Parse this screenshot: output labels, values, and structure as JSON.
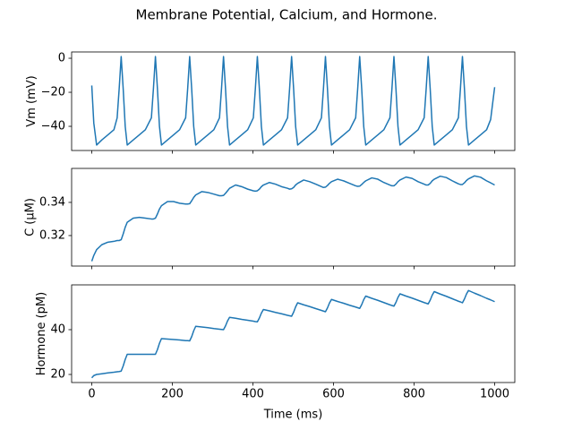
{
  "title": "Membrane Potential, Calcium, and Hormone.",
  "chart_data": [
    {
      "type": "line",
      "ylabel": "Vm (mV)",
      "color": "#1f77b4",
      "xlim": [
        -50,
        1050
      ],
      "ylim": [
        -54.2,
        3.7
      ],
      "yticks": [
        {
          "value": -40,
          "label": "−40"
        },
        {
          "value": -20,
          "label": "−20"
        },
        {
          "value": 0,
          "label": "0"
        }
      ],
      "x": [
        0,
        5,
        12,
        25,
        40,
        55,
        63,
        68,
        73,
        78,
        83,
        88,
        103,
        118,
        133,
        148,
        153,
        158,
        163,
        168,
        173,
        188,
        203,
        218,
        233,
        238,
        243,
        248,
        253,
        258,
        273,
        288,
        303,
        317,
        322,
        327,
        332,
        337,
        342,
        357,
        372,
        387,
        401,
        406,
        411,
        416,
        421,
        426,
        441,
        456,
        471,
        486,
        491,
        496,
        501,
        506,
        511,
        526,
        541,
        556,
        570,
        575,
        580,
        585,
        590,
        595,
        610,
        625,
        640,
        655,
        660,
        665,
        670,
        675,
        680,
        695,
        710,
        725,
        740,
        745,
        750,
        755,
        760,
        765,
        780,
        795,
        810,
        825,
        830,
        835,
        840,
        845,
        850,
        865,
        880,
        895,
        910,
        915,
        920,
        925,
        930,
        935,
        950,
        965,
        980,
        990,
        1000
      ],
      "values": [
        -16,
        -38,
        -51,
        -48,
        -45,
        -42,
        -35,
        -18,
        1,
        -18,
        -40,
        -51,
        -48,
        -45,
        -42,
        -35,
        -18,
        1,
        -18,
        -40,
        -51,
        -48,
        -45,
        -42,
        -35,
        -18,
        1,
        -18,
        -40,
        -51,
        -48,
        -45,
        -42,
        -35,
        -18,
        1,
        -18,
        -40,
        -51,
        -48,
        -45,
        -42,
        -35,
        -18,
        1,
        -18,
        -40,
        -51,
        -48,
        -45,
        -42,
        -35,
        -18,
        1,
        -18,
        -40,
        -51,
        -48,
        -45,
        -42,
        -35,
        -18,
        1,
        -18,
        -40,
        -51,
        -48,
        -45,
        -42,
        -35,
        -18,
        1,
        -18,
        -40,
        -51,
        -48,
        -45,
        -42,
        -35,
        -18,
        1,
        -18,
        -40,
        -51,
        -48,
        -45,
        -42,
        -35,
        -18,
        1,
        -18,
        -40,
        -51,
        -48,
        -45,
        -42,
        -35,
        -18,
        1,
        -18,
        -40,
        -51,
        -48,
        -45,
        -42,
        -36,
        -17
      ]
    },
    {
      "type": "line",
      "ylabel": "C (μM)",
      "color": "#1f77b4",
      "xlim": [
        -50,
        1050
      ],
      "ylim": [
        0.3016,
        0.3605
      ],
      "yticks": [
        0.32,
        0.34
      ],
      "x": [
        0,
        5,
        12,
        25,
        40,
        55,
        63,
        68,
        73,
        78,
        83,
        88,
        103,
        118,
        133,
        148,
        153,
        158,
        163,
        168,
        173,
        188,
        203,
        218,
        233,
        238,
        243,
        248,
        253,
        258,
        273,
        288,
        303,
        317,
        322,
        327,
        332,
        337,
        342,
        357,
        372,
        387,
        401,
        406,
        411,
        416,
        421,
        426,
        441,
        456,
        471,
        486,
        491,
        496,
        501,
        506,
        511,
        526,
        541,
        556,
        570,
        575,
        580,
        585,
        590,
        595,
        610,
        625,
        640,
        655,
        660,
        665,
        670,
        675,
        680,
        695,
        710,
        725,
        740,
        745,
        750,
        755,
        760,
        765,
        780,
        795,
        810,
        825,
        830,
        835,
        840,
        845,
        850,
        865,
        880,
        895,
        910,
        915,
        920,
        925,
        930,
        935,
        950,
        965,
        980,
        990,
        1000
      ],
      "values": [
        0.3045,
        0.308,
        0.3115,
        0.3145,
        0.316,
        0.3165,
        0.317,
        0.317,
        0.3175,
        0.321,
        0.325,
        0.328,
        0.3305,
        0.331,
        0.3305,
        0.33,
        0.33,
        0.3305,
        0.333,
        0.336,
        0.338,
        0.3405,
        0.3405,
        0.3395,
        0.339,
        0.339,
        0.3392,
        0.341,
        0.343,
        0.3445,
        0.3465,
        0.346,
        0.345,
        0.344,
        0.344,
        0.3442,
        0.3455,
        0.347,
        0.3485,
        0.3505,
        0.3495,
        0.348,
        0.347,
        0.3468,
        0.347,
        0.348,
        0.3495,
        0.3505,
        0.352,
        0.351,
        0.3495,
        0.3485,
        0.348,
        0.3482,
        0.349,
        0.3505,
        0.3515,
        0.3535,
        0.3525,
        0.351,
        0.3495,
        0.349,
        0.3492,
        0.3502,
        0.3515,
        0.3525,
        0.354,
        0.353,
        0.3515,
        0.35,
        0.3497,
        0.3498,
        0.3508,
        0.352,
        0.353,
        0.3548,
        0.354,
        0.352,
        0.3505,
        0.35,
        0.35,
        0.351,
        0.3525,
        0.3535,
        0.3553,
        0.3545,
        0.3525,
        0.351,
        0.3505,
        0.3505,
        0.3515,
        0.353,
        0.354,
        0.3558,
        0.355,
        0.353,
        0.3512,
        0.3508,
        0.3508,
        0.3518,
        0.3532,
        0.3542,
        0.356,
        0.3552,
        0.353,
        0.3518,
        0.3505
      ]
    },
    {
      "type": "line",
      "ylabel": "Hormone (pM)",
      "xlabel": "Time (ms)",
      "color": "#1f77b4",
      "xlim": [
        -50,
        1050
      ],
      "ylim": [
        16.4,
        60
      ],
      "yticks": [
        20,
        40
      ],
      "xticks": [
        0,
        200,
        400,
        600,
        800,
        1000
      ],
      "x": [
        0,
        5,
        12,
        25,
        40,
        55,
        63,
        68,
        73,
        78,
        83,
        88,
        103,
        118,
        133,
        148,
        153,
        158,
        163,
        168,
        173,
        188,
        203,
        218,
        233,
        238,
        243,
        248,
        253,
        258,
        273,
        288,
        303,
        317,
        322,
        327,
        332,
        337,
        342,
        357,
        372,
        387,
        401,
        406,
        411,
        416,
        421,
        426,
        441,
        456,
        471,
        486,
        491,
        496,
        501,
        506,
        511,
        526,
        541,
        556,
        570,
        575,
        580,
        585,
        590,
        595,
        610,
        625,
        640,
        655,
        660,
        665,
        670,
        675,
        680,
        695,
        710,
        725,
        740,
        745,
        750,
        755,
        760,
        765,
        780,
        795,
        810,
        825,
        830,
        835,
        840,
        845,
        850,
        865,
        880,
        895,
        910,
        915,
        920,
        925,
        930,
        935,
        950,
        965,
        980,
        990,
        1000
      ],
      "values": [
        18.5,
        19.5,
        20,
        20.3,
        20.7,
        21.0,
        21.2,
        21.3,
        21.5,
        23.8,
        26.7,
        29,
        29,
        29,
        29,
        29,
        29,
        29,
        31.1,
        33.9,
        36,
        35.8,
        35.6,
        35.4,
        35.1,
        35.1,
        35,
        36.9,
        39.5,
        41.5,
        41.2,
        40.9,
        40.5,
        40.2,
        40.1,
        40,
        41.7,
        43.9,
        45.5,
        45.1,
        44.6,
        44.2,
        43.8,
        43.6,
        43.5,
        45.2,
        47.4,
        49,
        48.4,
        47.7,
        47.1,
        46.4,
        46.2,
        46,
        47.8,
        50.2,
        52,
        51.1,
        50.3,
        49.4,
        48.6,
        48.3,
        48,
        49.7,
        51.9,
        53.5,
        52.6,
        51.8,
        50.9,
        50.1,
        49.8,
        49.5,
        51.2,
        53.4,
        55,
        54.0,
        53.1,
        52.1,
        51.1,
        50.8,
        50.5,
        52.2,
        54.4,
        56,
        55.0,
        54.1,
        53.1,
        52.1,
        51.8,
        51.5,
        53.2,
        55.4,
        57,
        55.9,
        54.9,
        53.8,
        52.7,
        52.4,
        52,
        53.7,
        55.9,
        57.5,
        56.3,
        55.2,
        54.0,
        53.3,
        52.5
      ]
    }
  ]
}
